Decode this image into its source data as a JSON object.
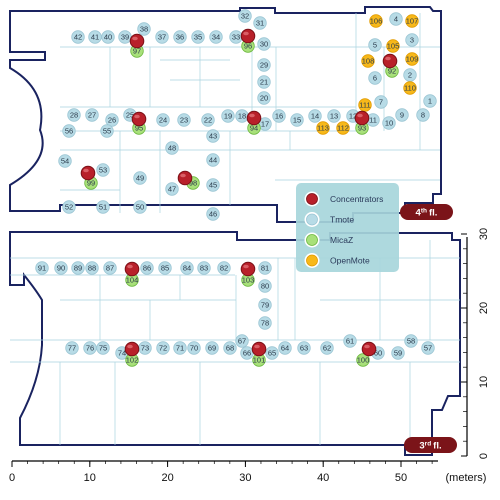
{
  "diagram": {
    "floors": [
      {
        "label": "4",
        "suffix": "th",
        "word": "fl."
      },
      {
        "label": "3",
        "suffix": "rd",
        "word": "fl."
      }
    ],
    "legend": [
      {
        "label": "Concentrators",
        "color": "#b8202a",
        "kind": "concentrator"
      },
      {
        "label": "Tmote",
        "color": "#b7dbe6",
        "kind": "tmote"
      },
      {
        "label": "MicaZ",
        "color": "#a8e07a",
        "kind": "micaz"
      },
      {
        "label": "OpenMote",
        "color": "#f7b81a",
        "kind": "openmote"
      }
    ],
    "x_axis": {
      "ticks": [
        "0",
        "10",
        "20",
        "30",
        "40",
        "50"
      ],
      "unit": "(meters)"
    },
    "y_axis": {
      "ticks": [
        "0",
        "10",
        "20",
        "30"
      ]
    },
    "nodes": [
      {
        "id": "42",
        "kind": "tmote"
      },
      {
        "id": "41",
        "kind": "tmote"
      },
      {
        "id": "40",
        "kind": "tmote"
      },
      {
        "id": "39",
        "kind": "tmote"
      },
      {
        "id": "38",
        "kind": "tmote"
      },
      {
        "id": "37",
        "kind": "tmote"
      },
      {
        "id": "36",
        "kind": "tmote"
      },
      {
        "id": "35",
        "kind": "tmote"
      },
      {
        "id": "34",
        "kind": "tmote"
      },
      {
        "id": "33",
        "kind": "tmote"
      },
      {
        "id": "32",
        "kind": "tmote"
      },
      {
        "id": "31",
        "kind": "tmote"
      },
      {
        "id": "30",
        "kind": "tmote"
      },
      {
        "id": "29",
        "kind": "tmote"
      },
      {
        "id": "21",
        "kind": "tmote"
      },
      {
        "id": "20",
        "kind": "tmote"
      },
      {
        "id": "19",
        "kind": "tmote"
      },
      {
        "id": "18",
        "kind": "tmote"
      },
      {
        "id": "17",
        "kind": "tmote"
      },
      {
        "id": "16",
        "kind": "tmote"
      },
      {
        "id": "15",
        "kind": "tmote"
      },
      {
        "id": "14",
        "kind": "tmote"
      },
      {
        "id": "13",
        "kind": "tmote"
      },
      {
        "id": "12",
        "kind": "tmote"
      },
      {
        "id": "11",
        "kind": "tmote"
      },
      {
        "id": "10",
        "kind": "tmote"
      },
      {
        "id": "9",
        "kind": "tmote"
      },
      {
        "id": "8",
        "kind": "tmote"
      },
      {
        "id": "7",
        "kind": "tmote"
      },
      {
        "id": "6",
        "kind": "tmote"
      },
      {
        "id": "5",
        "kind": "tmote"
      },
      {
        "id": "4",
        "kind": "tmote"
      },
      {
        "id": "3",
        "kind": "tmote"
      },
      {
        "id": "2",
        "kind": "tmote"
      },
      {
        "id": "1",
        "kind": "tmote"
      },
      {
        "id": "28",
        "kind": "tmote"
      },
      {
        "id": "27",
        "kind": "tmote"
      },
      {
        "id": "26",
        "kind": "tmote"
      },
      {
        "id": "25",
        "kind": "tmote"
      },
      {
        "id": "24",
        "kind": "tmote"
      },
      {
        "id": "23",
        "kind": "tmote"
      },
      {
        "id": "22",
        "kind": "tmote"
      },
      {
        "id": "56",
        "kind": "tmote"
      },
      {
        "id": "55",
        "kind": "tmote"
      },
      {
        "id": "54",
        "kind": "tmote"
      },
      {
        "id": "53",
        "kind": "tmote"
      },
      {
        "id": "52",
        "kind": "tmote"
      },
      {
        "id": "51",
        "kind": "tmote"
      },
      {
        "id": "50",
        "kind": "tmote"
      },
      {
        "id": "49",
        "kind": "tmote"
      },
      {
        "id": "48",
        "kind": "tmote"
      },
      {
        "id": "47",
        "kind": "tmote"
      },
      {
        "id": "46",
        "kind": "tmote"
      },
      {
        "id": "45",
        "kind": "tmote"
      },
      {
        "id": "44",
        "kind": "tmote"
      },
      {
        "id": "43",
        "kind": "tmote"
      },
      {
        "id": "91",
        "kind": "tmote"
      },
      {
        "id": "90",
        "kind": "tmote"
      },
      {
        "id": "89",
        "kind": "tmote"
      },
      {
        "id": "88",
        "kind": "tmote"
      },
      {
        "id": "87",
        "kind": "tmote"
      },
      {
        "id": "86",
        "kind": "tmote"
      },
      {
        "id": "85",
        "kind": "tmote"
      },
      {
        "id": "84",
        "kind": "tmote"
      },
      {
        "id": "83",
        "kind": "tmote"
      },
      {
        "id": "82",
        "kind": "tmote"
      },
      {
        "id": "81",
        "kind": "tmote"
      },
      {
        "id": "80",
        "kind": "tmote"
      },
      {
        "id": "79",
        "kind": "tmote"
      },
      {
        "id": "78",
        "kind": "tmote"
      },
      {
        "id": "77",
        "kind": "tmote"
      },
      {
        "id": "76",
        "kind": "tmote"
      },
      {
        "id": "75",
        "kind": "tmote"
      },
      {
        "id": "74",
        "kind": "tmote"
      },
      {
        "id": "73",
        "kind": "tmote"
      },
      {
        "id": "72",
        "kind": "tmote"
      },
      {
        "id": "71",
        "kind": "tmote"
      },
      {
        "id": "70",
        "kind": "tmote"
      },
      {
        "id": "69",
        "kind": "tmote"
      },
      {
        "id": "68",
        "kind": "tmote"
      },
      {
        "id": "67",
        "kind": "tmote"
      },
      {
        "id": "66",
        "kind": "tmote"
      },
      {
        "id": "65",
        "kind": "tmote"
      },
      {
        "id": "64",
        "kind": "tmote"
      },
      {
        "id": "63",
        "kind": "tmote"
      },
      {
        "id": "62",
        "kind": "tmote"
      },
      {
        "id": "61",
        "kind": "tmote"
      },
      {
        "id": "60",
        "kind": "tmote"
      },
      {
        "id": "59",
        "kind": "tmote"
      },
      {
        "id": "58",
        "kind": "tmote"
      },
      {
        "id": "57",
        "kind": "tmote"
      },
      {
        "id": "97",
        "kind": "micaz"
      },
      {
        "id": "96",
        "kind": "micaz"
      },
      {
        "id": "95",
        "kind": "micaz"
      },
      {
        "id": "94",
        "kind": "micaz"
      },
      {
        "id": "93",
        "kind": "micaz"
      },
      {
        "id": "92",
        "kind": "micaz"
      },
      {
        "id": "99",
        "kind": "micaz"
      },
      {
        "id": "98",
        "kind": "micaz"
      },
      {
        "id": "104",
        "kind": "micaz"
      },
      {
        "id": "103",
        "kind": "micaz"
      },
      {
        "id": "102",
        "kind": "micaz"
      },
      {
        "id": "101",
        "kind": "micaz"
      },
      {
        "id": "100",
        "kind": "micaz"
      },
      {
        "id": "106",
        "kind": "openmote"
      },
      {
        "id": "107",
        "kind": "openmote"
      },
      {
        "id": "105",
        "kind": "openmote"
      },
      {
        "id": "108",
        "kind": "openmote"
      },
      {
        "id": "109",
        "kind": "openmote"
      },
      {
        "id": "110",
        "kind": "openmote"
      },
      {
        "id": "111",
        "kind": "openmote"
      },
      {
        "id": "112",
        "kind": "openmote"
      },
      {
        "id": "113",
        "kind": "openmote"
      }
    ]
  }
}
